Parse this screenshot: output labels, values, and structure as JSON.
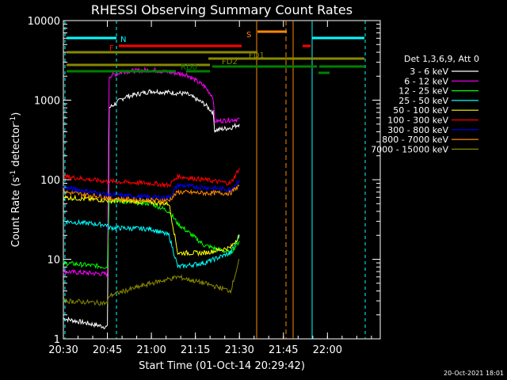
{
  "chart_data": {
    "type": "line",
    "title": "RHESSI Observing Summary Count Rates",
    "xlabel": "Start Time (01-Oct-14 20:29:42)",
    "ylabel": "Count Rate (s⁻¹ detector⁻¹)",
    "ylabel_main": "Count Rate (s",
    "ylabel_sup1": "-1",
    "ylabel_mid": " detector",
    "ylabel_sup2": "-1",
    "ylabel_end": ")",
    "x_range_min": [
      20.5,
      22.3
    ],
    "y_range": [
      1,
      10000
    ],
    "y_scale": "log",
    "x_ticks": [
      {
        "t": 20.5,
        "label": "20:30"
      },
      {
        "t": 20.75,
        "label": "20:45"
      },
      {
        "t": 21.0,
        "label": "21:00"
      },
      {
        "t": 21.25,
        "label": "21:15"
      },
      {
        "t": 21.5,
        "label": "21:30"
      },
      {
        "t": 21.75,
        "label": "21:45"
      },
      {
        "t": 22.0,
        "label": "22:00"
      }
    ],
    "y_ticks": [
      {
        "v": 1,
        "label": "1"
      },
      {
        "v": 10,
        "label": "10"
      },
      {
        "v": 100,
        "label": "100"
      },
      {
        "v": 1000,
        "label": "1000"
      },
      {
        "v": 10000,
        "label": "10000"
      }
    ],
    "legend_header": "Det 1,3,6,9, Att 0",
    "legend_position": "right",
    "series": [
      {
        "name": "3 - 6 keV",
        "color": "#ffffff",
        "points": [
          [
            20.5,
            1.8
          ],
          [
            20.75,
            1.4
          ],
          [
            20.76,
            800
          ],
          [
            20.85,
            1100
          ],
          [
            21.0,
            1300
          ],
          [
            21.2,
            1200
          ],
          [
            21.3,
            900
          ],
          [
            21.35,
            700
          ],
          [
            21.36,
            420
          ],
          [
            21.45,
            450
          ],
          [
            21.5,
            500
          ]
        ]
      },
      {
        "name": "6 - 12 keV",
        "color": "#ff00ff",
        "points": [
          [
            20.5,
            7
          ],
          [
            20.75,
            6.5
          ],
          [
            20.76,
            2000
          ],
          [
            20.85,
            2300
          ],
          [
            21.0,
            2400
          ],
          [
            21.2,
            2100
          ],
          [
            21.3,
            1500
          ],
          [
            21.35,
            1100
          ],
          [
            21.36,
            540
          ],
          [
            21.5,
            580
          ]
        ]
      },
      {
        "name": "12 - 25 keV",
        "color": "#00ff00",
        "points": [
          [
            20.5,
            9
          ],
          [
            20.75,
            8
          ],
          [
            20.76,
            55
          ],
          [
            21.0,
            50
          ],
          [
            21.1,
            40
          ],
          [
            21.15,
            28
          ],
          [
            21.3,
            15
          ],
          [
            21.45,
            12
          ],
          [
            21.5,
            17
          ]
        ]
      },
      {
        "name": "25 - 50 keV",
        "color": "#00ffff",
        "points": [
          [
            20.5,
            30
          ],
          [
            20.75,
            27
          ],
          [
            20.76,
            25
          ],
          [
            21.0,
            24
          ],
          [
            21.1,
            20
          ],
          [
            21.15,
            8
          ],
          [
            21.3,
            9
          ],
          [
            21.45,
            12
          ],
          [
            21.5,
            20
          ]
        ]
      },
      {
        "name": "50 - 100 keV",
        "color": "#ffff00",
        "points": [
          [
            20.5,
            60
          ],
          [
            20.75,
            55
          ],
          [
            20.76,
            55
          ],
          [
            21.0,
            52
          ],
          [
            21.1,
            50
          ],
          [
            21.15,
            12
          ],
          [
            21.3,
            12
          ],
          [
            21.45,
            14
          ],
          [
            21.5,
            20
          ]
        ]
      },
      {
        "name": "100 - 300 keV",
        "color": "#ff0000",
        "points": [
          [
            20.5,
            110
          ],
          [
            20.75,
            95
          ],
          [
            20.76,
            95
          ],
          [
            21.0,
            90
          ],
          [
            21.1,
            85
          ],
          [
            21.15,
            110
          ],
          [
            21.3,
            100
          ],
          [
            21.45,
            90
          ],
          [
            21.5,
            140
          ]
        ]
      },
      {
        "name": "300 - 800 keV",
        "color": "#0000ff",
        "points": [
          [
            20.5,
            80
          ],
          [
            20.75,
            65
          ],
          [
            20.76,
            65
          ],
          [
            21.0,
            60
          ],
          [
            21.1,
            60
          ],
          [
            21.15,
            85
          ],
          [
            21.3,
            80
          ],
          [
            21.45,
            75
          ],
          [
            21.5,
            100
          ]
        ]
      },
      {
        "name": "800 - 7000 keV",
        "color": "#ff8800",
        "points": [
          [
            20.5,
            70
          ],
          [
            20.75,
            60
          ],
          [
            20.76,
            58
          ],
          [
            21.0,
            55
          ],
          [
            21.1,
            55
          ],
          [
            21.15,
            70
          ],
          [
            21.3,
            68
          ],
          [
            21.45,
            68
          ],
          [
            21.5,
            85
          ]
        ]
      },
      {
        "name": "7000 - 15000 keV",
        "color": "#888800",
        "points": [
          [
            20.5,
            3
          ],
          [
            20.75,
            2.8
          ],
          [
            20.76,
            3.5
          ],
          [
            21.0,
            5
          ],
          [
            21.15,
            6
          ],
          [
            21.3,
            5
          ],
          [
            21.45,
            4
          ],
          [
            21.5,
            10
          ]
        ]
      }
    ],
    "annotations": [
      {
        "label": "N",
        "color": "#00ffff"
      },
      {
        "label": "F",
        "color": "#ff0000"
      },
      {
        "label": "S",
        "color": "#ff8800"
      },
      {
        "label": "FD1",
        "color": "#888800"
      },
      {
        "label": "FD2",
        "color": "#888800"
      },
      {
        "label": "RD0",
        "color": "#008000"
      }
    ],
    "footer_date": "20-Oct-2021 18:01"
  }
}
